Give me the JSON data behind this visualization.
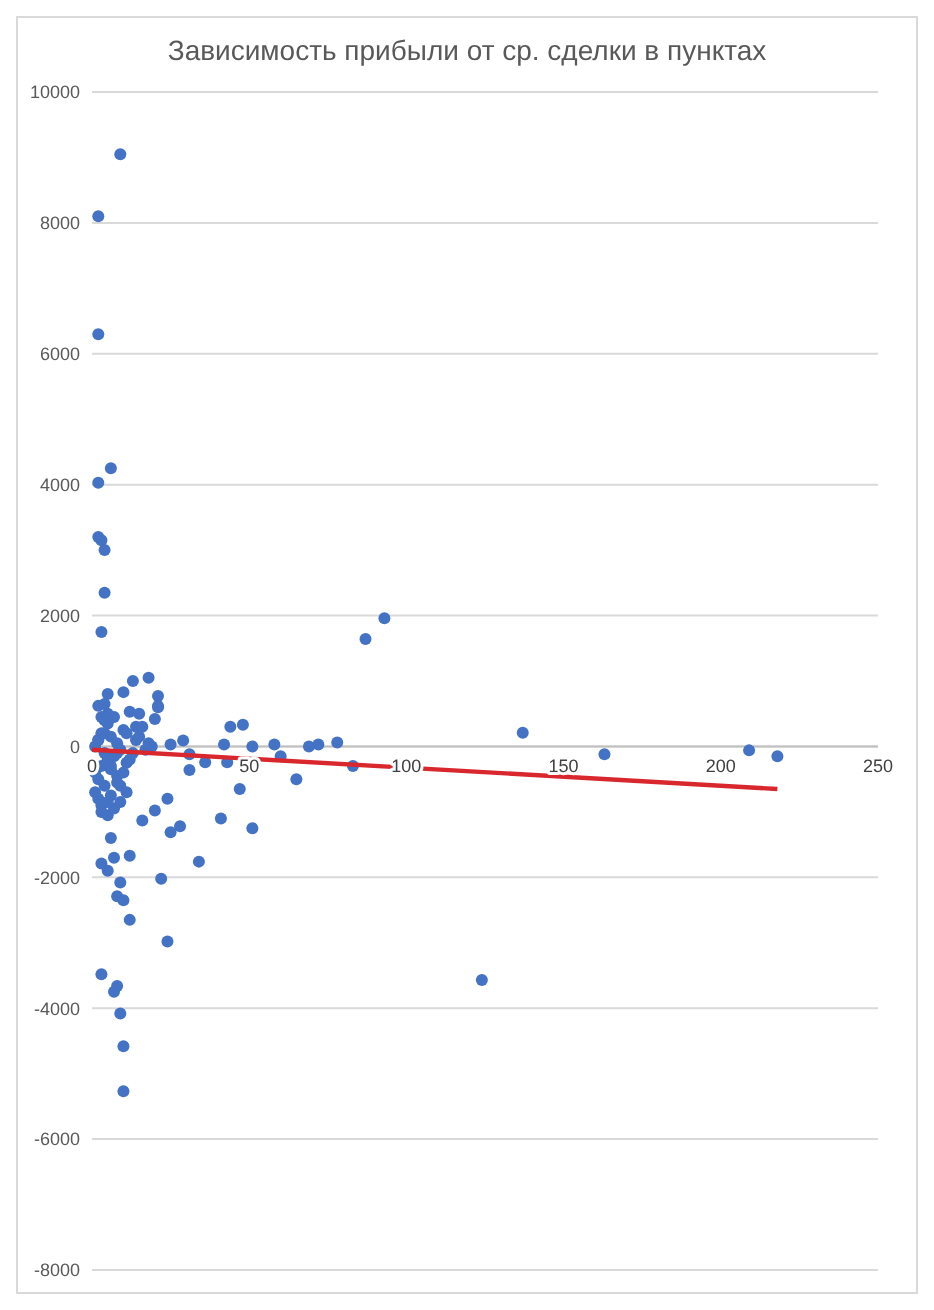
{
  "chart_data": {
    "type": "scatter",
    "title": "Зависимость прибыли от ср. сделки в пунктах",
    "xlim": [
      0,
      250
    ],
    "xticks": [
      0,
      50,
      100,
      150,
      200,
      250
    ],
    "ylim": [
      -8000,
      10000
    ],
    "yticks": [
      -8000,
      -6000,
      -4000,
      -2000,
      0,
      2000,
      4000,
      6000,
      8000,
      10000
    ],
    "grid": "y",
    "marker": "circle",
    "series": [
      {
        "color": "#4472c4",
        "x": [
          2,
          9,
          2,
          2,
          6,
          2,
          3,
          4,
          4,
          3,
          13,
          18,
          10,
          21,
          2,
          4,
          5,
          12,
          15,
          14,
          16,
          20,
          21,
          21,
          19,
          25,
          29,
          31,
          31,
          36,
          43,
          42,
          44,
          48,
          51,
          58,
          60,
          65,
          69,
          72,
          78,
          83,
          87,
          93,
          137,
          163,
          209,
          218,
          124,
          47,
          3,
          8,
          7,
          9,
          10,
          10,
          24,
          12,
          9,
          8,
          10,
          22,
          3,
          5,
          7,
          12,
          34,
          41,
          51,
          25,
          28,
          16,
          20,
          24,
          1,
          2,
          3,
          4,
          5,
          6,
          7,
          8,
          9,
          10,
          11,
          1,
          2,
          3,
          4,
          5,
          6,
          7,
          8,
          9,
          11,
          13,
          1,
          2,
          3,
          4,
          5,
          6,
          8,
          10,
          12,
          14,
          3,
          5,
          7,
          9,
          11,
          2,
          4,
          6,
          8,
          15,
          17,
          18,
          3,
          5,
          6
        ],
        "values": [
          8100,
          9050,
          6300,
          4030,
          4250,
          3200,
          3150,
          3000,
          2350,
          1750,
          1000,
          1050,
          830,
          620,
          620,
          650,
          800,
          530,
          500,
          300,
          300,
          420,
          600,
          770,
          0,
          30,
          90,
          -360,
          -120,
          -240,
          -240,
          30,
          300,
          330,
          0,
          30,
          -150,
          -500,
          0,
          30,
          60,
          -300,
          1640,
          1960,
          210,
          -120,
          -60,
          -150,
          -3570,
          -650,
          -3480,
          -3660,
          -3750,
          -4080,
          -4580,
          -5270,
          -2980,
          -2650,
          -2080,
          -2290,
          -2350,
          -2020,
          -1790,
          -1900,
          -1700,
          -1670,
          -1760,
          -1100,
          -1250,
          -1310,
          -1220,
          -1130,
          -980,
          -800,
          0,
          100,
          200,
          -100,
          -200,
          150,
          -150,
          50,
          -50,
          250,
          -250,
          -400,
          -500,
          -300,
          400,
          350,
          -350,
          450,
          -450,
          -600,
          200,
          -100,
          -700,
          -800,
          -900,
          -600,
          500,
          -750,
          -550,
          -400,
          -200,
          100,
          -1000,
          -1050,
          -950,
          -850,
          -700,
          100,
          200,
          -300,
          -100,
          150,
          -50,
          50,
          450,
          -850,
          -1400
        ]
      },
      {
        "type": "line",
        "color": "#d9272e",
        "x": [
          0,
          218
        ],
        "values": [
          -50,
          -650
        ],
        "marker": "none"
      }
    ]
  }
}
